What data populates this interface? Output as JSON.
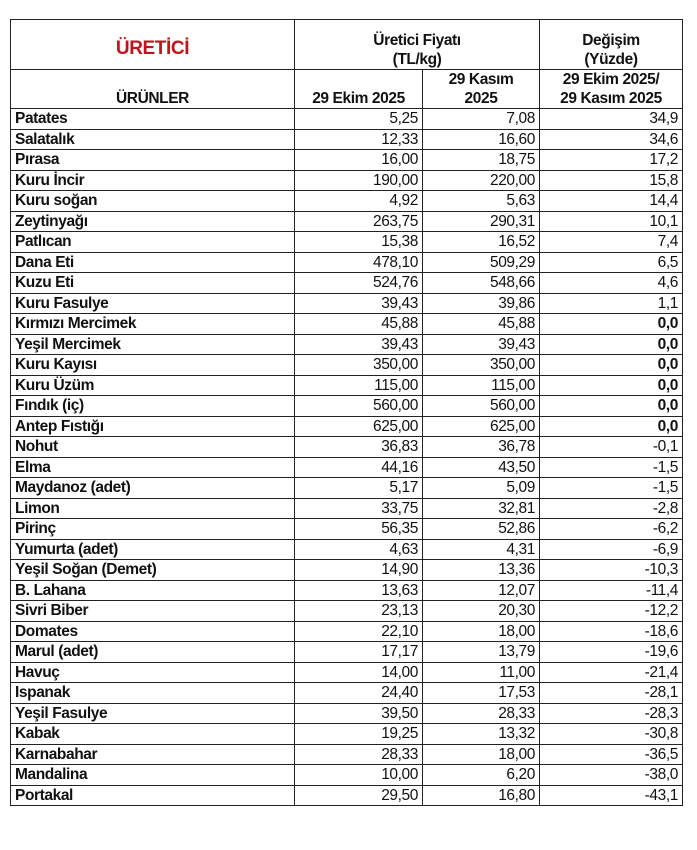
{
  "header": {
    "brand": "ÜRETİCİ",
    "price_title_line1": "Üretici Fiyatı",
    "price_title_line2": "(TL/kg)",
    "change_title_line1": "Değişim",
    "change_title_line2": "(Yüzde)",
    "products_label": "ÜRÜNLER",
    "col_oct": "29 Ekim 2025",
    "col_nov_line1": "29 Kasım",
    "col_nov_line2": "2025",
    "col_change_line1": "29 Ekim 2025/",
    "col_change_line2": "29 Kasım 2025"
  },
  "accent_color": "#c0141c",
  "rows": [
    {
      "product": "Patates",
      "oct": "5,25",
      "nov": "7,08",
      "change": "34,9"
    },
    {
      "product": "Salatalık",
      "oct": "12,33",
      "nov": "16,60",
      "change": "34,6"
    },
    {
      "product": "Pırasa",
      "oct": "16,00",
      "nov": "18,75",
      "change": "17,2"
    },
    {
      "product": "Kuru İncir",
      "oct": "190,00",
      "nov": "220,00",
      "change": "15,8"
    },
    {
      "product": "Kuru soğan",
      "oct": "4,92",
      "nov": "5,63",
      "change": "14,4"
    },
    {
      "product": "Zeytinyağı",
      "oct": "263,75",
      "nov": "290,31",
      "change": "10,1"
    },
    {
      "product": "Patlıcan",
      "oct": "15,38",
      "nov": "16,52",
      "change": "7,4"
    },
    {
      "product": "Dana Eti",
      "oct": "478,10",
      "nov": "509,29",
      "change": "6,5"
    },
    {
      "product": "Kuzu Eti",
      "oct": "524,76",
      "nov": "548,66",
      "change": "4,6"
    },
    {
      "product": "Kuru Fasulye",
      "oct": "39,43",
      "nov": "39,86",
      "change": "1,1"
    },
    {
      "product": "Kırmızı Mercimek",
      "oct": "45,88",
      "nov": "45,88",
      "change": "0,0"
    },
    {
      "product": "Yeşil Mercimek",
      "oct": "39,43",
      "nov": "39,43",
      "change": "0,0"
    },
    {
      "product": "Kuru Kayısı",
      "oct": "350,00",
      "nov": "350,00",
      "change": "0,0"
    },
    {
      "product": "Kuru Üzüm",
      "oct": "115,00",
      "nov": "115,00",
      "change": "0,0"
    },
    {
      "product": "Fındık (iç)",
      "oct": "560,00",
      "nov": "560,00",
      "change": "0,0"
    },
    {
      "product": "Antep Fıstığı",
      "oct": "625,00",
      "nov": "625,00",
      "change": "0,0"
    },
    {
      "product": "Nohut",
      "oct": "36,83",
      "nov": "36,78",
      "change": "-0,1"
    },
    {
      "product": "Elma",
      "oct": "44,16",
      "nov": "43,50",
      "change": "-1,5"
    },
    {
      "product": "Maydanoz (adet)",
      "oct": "5,17",
      "nov": "5,09",
      "change": "-1,5"
    },
    {
      "product": "Limon",
      "oct": "33,75",
      "nov": "32,81",
      "change": "-2,8"
    },
    {
      "product": "Pirinç",
      "oct": "56,35",
      "nov": "52,86",
      "change": "-6,2"
    },
    {
      "product": "Yumurta (adet)",
      "oct": "4,63",
      "nov": "4,31",
      "change": "-6,9"
    },
    {
      "product": "Yeşil Soğan (Demet)",
      "oct": "14,90",
      "nov": "13,36",
      "change": "-10,3"
    },
    {
      "product": "B. Lahana",
      "oct": "13,63",
      "nov": "12,07",
      "change": "-11,4"
    },
    {
      "product": "Sivri Biber",
      "oct": "23,13",
      "nov": "20,30",
      "change": "-12,2"
    },
    {
      "product": "Domates",
      "oct": "22,10",
      "nov": "18,00",
      "change": "-18,6"
    },
    {
      "product": "Marul (adet)",
      "oct": "17,17",
      "nov": "13,79",
      "change": "-19,6"
    },
    {
      "product": "Havuç",
      "oct": "14,00",
      "nov": "11,00",
      "change": "-21,4"
    },
    {
      "product": "Ispanak",
      "oct": "24,40",
      "nov": "17,53",
      "change": "-28,1"
    },
    {
      "product": "Yeşil Fasulye",
      "oct": "39,50",
      "nov": "28,33",
      "change": "-28,3"
    },
    {
      "product": "Kabak",
      "oct": "19,25",
      "nov": "13,32",
      "change": "-30,8"
    },
    {
      "product": "Karnabahar",
      "oct": "28,33",
      "nov": "18,00",
      "change": "-36,5"
    },
    {
      "product": "Mandalina",
      "oct": "10,00",
      "nov": "6,20",
      "change": "-38,0"
    },
    {
      "product": "Portakal",
      "oct": "29,50",
      "nov": "16,80",
      "change": "-43,1"
    }
  ]
}
